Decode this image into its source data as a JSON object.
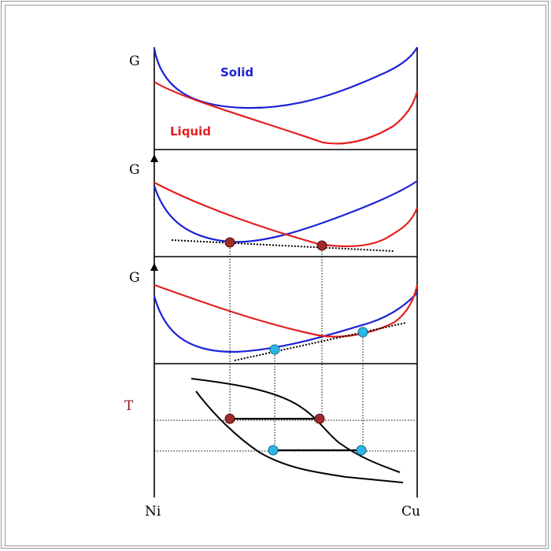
{
  "panels": [
    {
      "axis_label": "G",
      "solid_label": "Solid",
      "liquid_label": "Liquid"
    },
    {
      "axis_label": "G"
    },
    {
      "axis_label": "G"
    },
    {
      "axis_label": "T"
    }
  ],
  "x_axis": {
    "left_label": "Ni",
    "right_label": "Cu"
  },
  "colors": {
    "solid": "#1c22d6",
    "liquid": "#e31f1f",
    "phase_boundary": "#000000",
    "point_dark": "#9e2a2a",
    "point_light": "#29b7e6",
    "temperature_label": "#8b1a1a"
  }
}
